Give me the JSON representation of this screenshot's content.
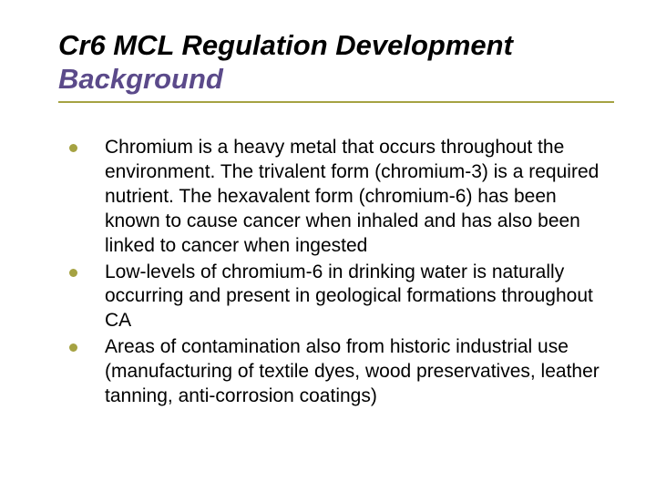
{
  "slide": {
    "title_line1": "Cr6 MCL Regulation Development",
    "title_line2": "Background",
    "bullets": [
      "Chromium is a heavy metal that occurs throughout the environment. The trivalent form (chromium-3) is a required nutrient. The hexavalent form (chromium-6) has been known to cause cancer when inhaled and has also been linked to cancer when ingested",
      "Low-levels of chromium-6 in drinking water is naturally occurring and present in geological formations throughout CA",
      "Areas of contamination also from historic industrial use (manufacturing of textile dyes, wood preservatives, leather tanning, anti-corrosion coatings)"
    ],
    "colors": {
      "accent": "#a5a242",
      "subtitle": "#5b4a8a",
      "text": "#000000",
      "background": "#ffffff"
    },
    "typography": {
      "title_fontsize": 31,
      "body_fontsize": 21,
      "title_weight": "bold",
      "title_style": "italic"
    }
  }
}
